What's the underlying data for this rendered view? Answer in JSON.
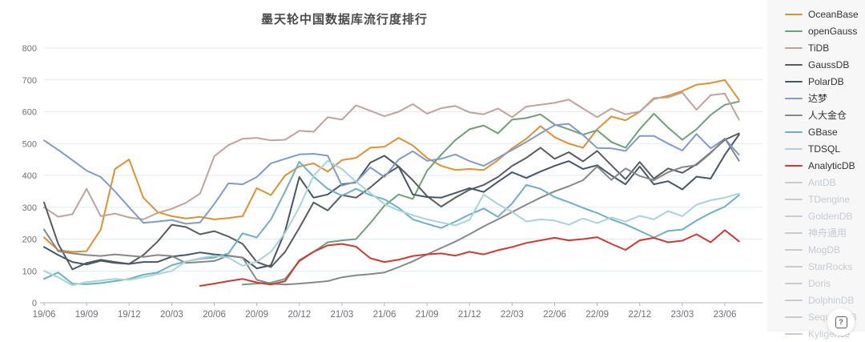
{
  "help_button": {
    "glyph": "?"
  },
  "chart_data": {
    "type": "line",
    "title": "墨天轮中国数据库流行度排行",
    "xlabel": "",
    "ylabel": "",
    "ylim": [
      0,
      800
    ],
    "y_ticks": [
      0,
      100,
      200,
      300,
      400,
      500,
      600,
      700,
      800
    ],
    "grid": true,
    "legend_position": "right",
    "x_tick_every": 3,
    "x": [
      "19/06",
      "19/07",
      "19/08",
      "19/09",
      "19/10",
      "19/11",
      "19/12",
      "20/01",
      "20/02",
      "20/03",
      "20/04",
      "20/05",
      "20/06",
      "20/07",
      "20/08",
      "20/09",
      "20/10",
      "20/11",
      "20/12",
      "21/01",
      "21/02",
      "21/03",
      "21/04",
      "21/05",
      "21/06",
      "21/07",
      "21/08",
      "21/09",
      "21/10",
      "21/11",
      "21/12",
      "22/01",
      "22/02",
      "22/03",
      "22/04",
      "22/05",
      "22/06",
      "22/07",
      "22/08",
      "22/09",
      "22/10",
      "22/11",
      "22/12",
      "23/01",
      "23/02",
      "23/03",
      "23/04",
      "23/05",
      "23/06",
      "23/07"
    ],
    "series": [
      {
        "name": "OceanBase",
        "color": "#e0912f",
        "enabled": true,
        "values": [
          205,
          165,
          160,
          162,
          230,
          420,
          450,
          330,
          285,
          272,
          265,
          270,
          262,
          266,
          272,
          360,
          338,
          400,
          428,
          438,
          412,
          448,
          455,
          487,
          490,
          518,
          494,
          455,
          430,
          417,
          420,
          417,
          448,
          485,
          515,
          555,
          520,
          500,
          487,
          545,
          585,
          573,
          600,
          640,
          650,
          665,
          685,
          690,
          700,
          637
        ]
      },
      {
        "name": "openGauss",
        "color": "#70a077",
        "enabled": true,
        "values": [
          null,
          null,
          null,
          null,
          null,
          null,
          null,
          null,
          null,
          null,
          null,
          null,
          null,
          null,
          57,
          60,
          63,
          75,
          130,
          160,
          190,
          196,
          200,
          250,
          305,
          340,
          326,
          414,
          465,
          511,
          545,
          557,
          532,
          575,
          580,
          592,
          560,
          545,
          528,
          542,
          505,
          487,
          545,
          594,
          550,
          512,
          545,
          590,
          622,
          632
        ]
      },
      {
        "name": "TiDB",
        "color": "#c2a19a",
        "enabled": true,
        "values": [
          300,
          270,
          278,
          358,
          272,
          280,
          268,
          262,
          282,
          295,
          314,
          343,
          460,
          495,
          515,
          518,
          510,
          512,
          540,
          537,
          583,
          575,
          620,
          603,
          586,
          600,
          624,
          594,
          611,
          618,
          598,
          592,
          610,
          583,
          616,
          622,
          628,
          638,
          610,
          583,
          610,
          592,
          600,
          643,
          645,
          660,
          606,
          652,
          657,
          575
        ]
      },
      {
        "name": "GaussDB",
        "color": "#595b5e",
        "enabled": true,
        "values": [
          315,
          185,
          105,
          125,
          135,
          128,
          122,
          150,
          192,
          245,
          238,
          215,
          225,
          208,
          185,
          128,
          112,
          160,
          235,
          315,
          290,
          338,
          330,
          362,
          400,
          428,
          385,
          335,
          302,
          330,
          355,
          370,
          395,
          430,
          455,
          487,
          452,
          473,
          444,
          477,
          432,
          388,
          442,
          390,
          422,
          408,
          435,
          472,
          512,
          532
        ]
      },
      {
        "name": "PolarDB",
        "color": "#445669",
        "enabled": true,
        "values": [
          175,
          150,
          128,
          120,
          132,
          125,
          122,
          128,
          128,
          145,
          150,
          158,
          152,
          148,
          142,
          108,
          118,
          225,
          395,
          330,
          340,
          372,
          378,
          440,
          462,
          428,
          340,
          332,
          330,
          345,
          360,
          348,
          380,
          410,
          392,
          412,
          430,
          445,
          420,
          432,
          400,
          372,
          428,
          372,
          382,
          356,
          396,
          390,
          465,
          528
        ]
      },
      {
        "name": "达梦",
        "color": "#7d9bcb",
        "enabled": true,
        "values": [
          510,
          480,
          448,
          415,
          395,
          350,
          300,
          251,
          255,
          260,
          248,
          252,
          310,
          375,
          372,
          395,
          438,
          452,
          466,
          468,
          462,
          368,
          380,
          425,
          395,
          450,
          476,
          446,
          452,
          466,
          445,
          430,
          455,
          480,
          505,
          532,
          558,
          562,
          527,
          486,
          485,
          477,
          524,
          524,
          500,
          478,
          530,
          485,
          515,
          465
        ]
      },
      {
        "name": "人大金仓",
        "color": "#85878a",
        "enabled": true,
        "values": [
          230,
          162,
          155,
          150,
          147,
          152,
          148,
          144,
          150,
          147,
          125,
          128,
          131,
          148,
          142,
          72,
          60,
          57,
          60,
          64,
          68,
          80,
          86,
          90,
          95,
          112,
          130,
          152,
          172,
          192,
          215,
          240,
          262,
          285,
          308,
          330,
          350,
          366,
          385,
          428,
          386,
          422,
          398,
          385,
          410,
          426,
          432,
          470,
          516,
          446
        ]
      },
      {
        "name": "GBase",
        "color": "#6cb0c8",
        "enabled": true,
        "values": [
          75,
          95,
          60,
          58,
          62,
          68,
          75,
          88,
          95,
          118,
          130,
          138,
          142,
          155,
          218,
          205,
          262,
          350,
          443,
          396,
          358,
          336,
          358,
          338,
          325,
          298,
          262,
          248,
          235,
          255,
          277,
          296,
          270,
          312,
          370,
          358,
          332,
          316,
          298,
          282,
          262,
          246,
          226,
          205,
          226,
          230,
          258,
          282,
          302,
          338
        ]
      },
      {
        "name": "TDSQL",
        "color": "#a6d4da",
        "enabled": true,
        "values": [
          100,
          80,
          55,
          65,
          70,
          75,
          72,
          80,
          90,
          100,
          130,
          140,
          148,
          142,
          116,
          129,
          160,
          220,
          300,
          399,
          446,
          420,
          380,
          345,
          310,
          290,
          275,
          262,
          252,
          243,
          260,
          340,
          310,
          285,
          255,
          262,
          258,
          245,
          265,
          250,
          268,
          255,
          273,
          262,
          288,
          272,
          308,
          322,
          330,
          343
        ]
      },
      {
        "name": "AnalyticDB",
        "color": "#cf3933",
        "enabled": true,
        "values": [
          null,
          null,
          null,
          null,
          null,
          null,
          null,
          null,
          null,
          null,
          null,
          53,
          60,
          68,
          75,
          64,
          57,
          68,
          133,
          160,
          180,
          185,
          176,
          140,
          128,
          135,
          147,
          152,
          155,
          148,
          160,
          152,
          165,
          175,
          188,
          196,
          204,
          196,
          200,
          206,
          185,
          166,
          196,
          204,
          190,
          195,
          215,
          190,
          228,
          193
        ]
      },
      {
        "name": "AntDB",
        "color": "#c6cbd1",
        "enabled": false,
        "values": []
      },
      {
        "name": "TDengine",
        "color": "#c6cbd1",
        "enabled": false,
        "values": []
      },
      {
        "name": "GoldenDB",
        "color": "#c6cbd1",
        "enabled": false,
        "values": []
      },
      {
        "name": "神舟通用",
        "color": "#c6cbd1",
        "enabled": false,
        "values": []
      },
      {
        "name": "MogDB",
        "color": "#c6cbd1",
        "enabled": false,
        "values": []
      },
      {
        "name": "StarRocks",
        "color": "#c6cbd1",
        "enabled": false,
        "values": []
      },
      {
        "name": "Doris",
        "color": "#c6cbd1",
        "enabled": false,
        "values": []
      },
      {
        "name": "DolphinDB",
        "color": "#c6cbd1",
        "enabled": false,
        "values": []
      },
      {
        "name": "SequoiaDB",
        "color": "#c6cbd1",
        "enabled": false,
        "values": []
      },
      {
        "name": "Kyligence",
        "color": "#c6cbd1",
        "enabled": false,
        "values": []
      }
    ]
  }
}
